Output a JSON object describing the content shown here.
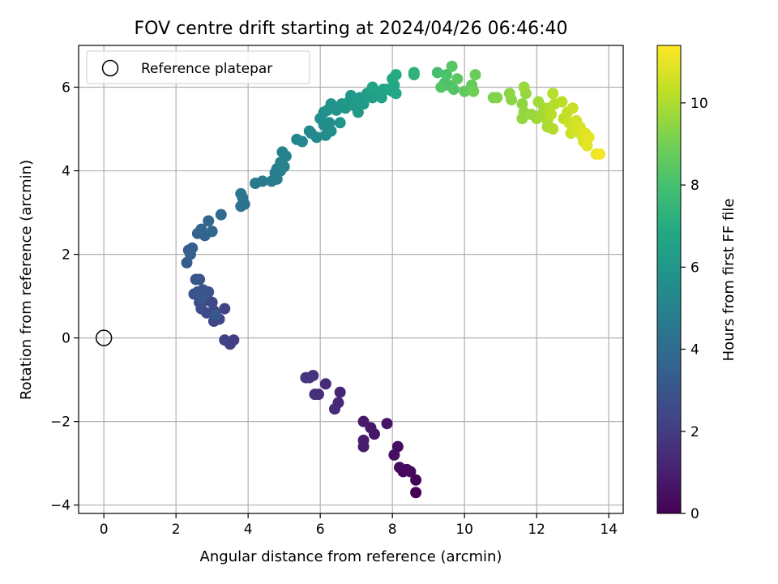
{
  "chart_data": {
    "type": "scatter",
    "title": "FOV centre drift starting at 2024/04/26 06:46:40",
    "xlabel": "Angular distance from reference (arcmin)",
    "ylabel": "Rotation from reference (arcmin)",
    "xlim": [
      -0.7,
      14.4
    ],
    "ylim": [
      -4.2,
      7.0
    ],
    "xticks": [
      0,
      2,
      4,
      6,
      8,
      10,
      12,
      14
    ],
    "yticks": [
      -4,
      -2,
      0,
      2,
      4,
      6
    ],
    "grid": true,
    "legend": {
      "placement": "top-left",
      "entries": [
        "Reference platepar"
      ]
    },
    "reference_point": {
      "label": "Reference platepar",
      "x": 0,
      "y": 0
    },
    "colorbar": {
      "label": "Hours from first FF file",
      "colormap": "viridis",
      "range": [
        0,
        11.4
      ],
      "ticks": [
        0,
        2,
        4,
        6,
        8,
        10
      ]
    },
    "points": [
      [
        8.65,
        -3.7,
        0.0
      ],
      [
        8.65,
        -3.4,
        0.1
      ],
      [
        8.5,
        -3.2,
        0.2
      ],
      [
        8.3,
        -3.2,
        0.2
      ],
      [
        8.2,
        -3.1,
        0.3
      ],
      [
        8.4,
        -3.15,
        0.3
      ],
      [
        8.15,
        -2.6,
        0.4
      ],
      [
        8.05,
        -2.8,
        0.5
      ],
      [
        7.85,
        -2.05,
        0.6
      ],
      [
        7.5,
        -2.3,
        0.7
      ],
      [
        7.4,
        -2.15,
        0.75
      ],
      [
        7.2,
        -2.0,
        0.8
      ],
      [
        7.2,
        -2.45,
        0.85
      ],
      [
        7.2,
        -2.6,
        0.9
      ],
      [
        6.55,
        -1.3,
        1.2
      ],
      [
        6.5,
        -1.55,
        1.3
      ],
      [
        6.4,
        -1.7,
        1.35
      ],
      [
        6.15,
        -1.1,
        1.4
      ],
      [
        5.95,
        -1.35,
        1.5
      ],
      [
        5.85,
        -1.35,
        1.55
      ],
      [
        5.8,
        -0.9,
        1.6
      ],
      [
        5.6,
        -0.95,
        1.7
      ],
      [
        5.7,
        -0.95,
        1.75
      ],
      [
        3.6,
        -0.05,
        2.1
      ],
      [
        3.5,
        -0.15,
        2.15
      ],
      [
        3.35,
        -0.05,
        2.2
      ],
      [
        3.35,
        0.7,
        2.3
      ],
      [
        3.2,
        0.45,
        2.35
      ],
      [
        3.05,
        0.4,
        2.4
      ],
      [
        3.05,
        0.65,
        2.4
      ],
      [
        3.0,
        0.85,
        2.5
      ],
      [
        2.9,
        0.9,
        2.55
      ],
      [
        2.85,
        0.6,
        2.6
      ],
      [
        2.7,
        0.7,
        2.65
      ],
      [
        2.8,
        1.0,
        2.7
      ],
      [
        2.65,
        0.85,
        2.75
      ],
      [
        2.6,
        1.1,
        2.8
      ],
      [
        2.5,
        1.05,
        2.85
      ],
      [
        2.75,
        1.15,
        2.9
      ],
      [
        2.9,
        1.1,
        2.95
      ],
      [
        2.65,
        1.4,
        3.0
      ],
      [
        2.55,
        1.4,
        3.05
      ],
      [
        3.1,
        0.55,
        3.1
      ],
      [
        2.7,
        0.95,
        3.1
      ],
      [
        2.3,
        1.8,
        3.3
      ],
      [
        2.35,
        2.1,
        3.35
      ],
      [
        2.4,
        2.0,
        3.4
      ],
      [
        2.45,
        2.15,
        3.45
      ],
      [
        2.6,
        2.5,
        3.6
      ],
      [
        2.8,
        2.45,
        3.65
      ],
      [
        2.7,
        2.55,
        3.7
      ],
      [
        2.7,
        2.6,
        3.75
      ],
      [
        2.9,
        2.8,
        3.8
      ],
      [
        3.0,
        2.55,
        3.85
      ],
      [
        3.25,
        2.95,
        3.9
      ],
      [
        3.8,
        3.15,
        4.3
      ],
      [
        3.9,
        3.2,
        4.35
      ],
      [
        3.85,
        3.35,
        4.4
      ],
      [
        3.8,
        3.45,
        4.45
      ],
      [
        4.2,
        3.7,
        4.6
      ],
      [
        4.4,
        3.75,
        4.65
      ],
      [
        4.65,
        3.75,
        4.7
      ],
      [
        4.8,
        3.8,
        4.75
      ],
      [
        4.75,
        3.95,
        4.8
      ],
      [
        4.8,
        4.05,
        4.85
      ],
      [
        4.9,
        4.0,
        4.9
      ],
      [
        4.9,
        4.2,
        4.95
      ],
      [
        5.0,
        4.1,
        5.0
      ],
      [
        4.95,
        4.45,
        5.0
      ],
      [
        5.05,
        4.35,
        5.05
      ],
      [
        5.35,
        4.75,
        5.15
      ],
      [
        5.5,
        4.7,
        5.2
      ],
      [
        5.75,
        4.9,
        5.3
      ],
      [
        5.9,
        4.8,
        5.35
      ],
      [
        5.7,
        4.95,
        5.35
      ],
      [
        6.15,
        4.85,
        5.45
      ],
      [
        6.1,
        5.1,
        5.5
      ],
      [
        6.25,
        5.15,
        5.55
      ],
      [
        6.3,
        4.95,
        5.6
      ],
      [
        6.0,
        5.25,
        5.65
      ],
      [
        6.1,
        5.4,
        5.7
      ],
      [
        6.2,
        5.45,
        5.75
      ],
      [
        6.3,
        5.6,
        5.8
      ],
      [
        6.45,
        5.45,
        5.85
      ],
      [
        6.55,
        5.15,
        5.9
      ],
      [
        6.6,
        5.6,
        5.95
      ],
      [
        6.7,
        5.5,
        6.0
      ],
      [
        6.8,
        5.65,
        6.05
      ],
      [
        6.85,
        5.8,
        6.1
      ],
      [
        6.95,
        5.55,
        6.15
      ],
      [
        7.05,
        5.4,
        6.2
      ],
      [
        7.1,
        5.75,
        6.2
      ],
      [
        7.2,
        5.6,
        6.25
      ],
      [
        7.3,
        5.85,
        6.3
      ],
      [
        7.45,
        5.75,
        6.35
      ],
      [
        7.5,
        5.9,
        6.4
      ],
      [
        7.6,
        5.85,
        6.45
      ],
      [
        7.7,
        5.75,
        6.5
      ],
      [
        7.75,
        5.95,
        6.55
      ],
      [
        7.45,
        6.0,
        6.6
      ],
      [
        7.85,
        5.95,
        6.7
      ],
      [
        8.0,
        5.9,
        6.75
      ],
      [
        8.05,
        6.05,
        6.8
      ],
      [
        8.1,
        5.85,
        6.85
      ],
      [
        8.0,
        6.2,
        6.9
      ],
      [
        8.1,
        6.3,
        6.95
      ],
      [
        8.6,
        6.3,
        7.3
      ],
      [
        8.6,
        6.35,
        7.35
      ],
      [
        9.25,
        6.35,
        8.0
      ],
      [
        9.45,
        6.1,
        8.1
      ],
      [
        9.5,
        6.3,
        8.15
      ],
      [
        9.55,
        6.05,
        8.2
      ],
      [
        9.7,
        5.95,
        8.3
      ],
      [
        9.35,
        6.0,
        8.35
      ],
      [
        9.65,
        6.5,
        8.4
      ],
      [
        9.8,
        6.2,
        8.5
      ],
      [
        10.0,
        5.9,
        8.6
      ],
      [
        10.2,
        6.05,
        8.7
      ],
      [
        10.3,
        6.3,
        8.8
      ],
      [
        10.25,
        5.9,
        8.9
      ],
      [
        10.8,
        5.75,
        9.2
      ],
      [
        10.9,
        5.75,
        9.25
      ],
      [
        11.3,
        5.7,
        9.4
      ],
      [
        11.25,
        5.85,
        9.45
      ],
      [
        11.6,
        5.6,
        9.5
      ],
      [
        11.65,
        5.4,
        9.55
      ],
      [
        11.6,
        5.25,
        9.6
      ],
      [
        11.7,
        5.85,
        9.6
      ],
      [
        11.85,
        5.35,
        9.65
      ],
      [
        11.65,
        6.0,
        9.7
      ],
      [
        12.0,
        5.25,
        9.75
      ],
      [
        12.05,
        5.65,
        9.8
      ],
      [
        12.2,
        5.5,
        9.85
      ],
      [
        12.15,
        5.35,
        9.85
      ],
      [
        12.3,
        5.05,
        9.9
      ],
      [
        12.3,
        5.2,
        9.95
      ],
      [
        12.35,
        5.5,
        10.0
      ],
      [
        12.45,
        5.0,
        10.05
      ],
      [
        12.5,
        5.6,
        10.1
      ],
      [
        12.45,
        5.85,
        10.15
      ],
      [
        12.4,
        5.35,
        10.2
      ],
      [
        12.7,
        5.65,
        10.25
      ],
      [
        12.75,
        5.25,
        10.3
      ],
      [
        12.85,
        5.4,
        10.35
      ],
      [
        12.9,
        5.15,
        10.4
      ],
      [
        13.0,
        5.5,
        10.45
      ],
      [
        12.95,
        4.9,
        10.5
      ],
      [
        13.0,
        5.05,
        10.55
      ],
      [
        13.1,
        5.2,
        10.6
      ],
      [
        13.1,
        4.95,
        10.65
      ],
      [
        13.2,
        5.05,
        10.7
      ],
      [
        13.25,
        4.85,
        10.75
      ],
      [
        13.3,
        4.7,
        10.8
      ],
      [
        13.35,
        4.9,
        10.85
      ],
      [
        13.4,
        4.6,
        10.9
      ],
      [
        13.45,
        4.8,
        10.95
      ],
      [
        13.65,
        4.4,
        11.1
      ],
      [
        13.75,
        4.4,
        11.2
      ]
    ]
  }
}
